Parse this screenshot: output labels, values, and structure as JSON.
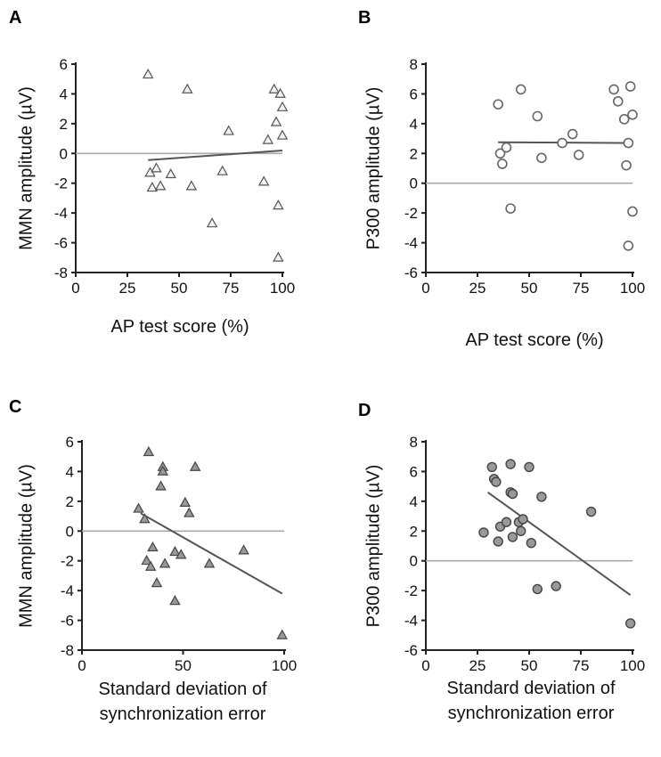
{
  "chart_data": [
    {
      "id": "A",
      "panel_label": "A",
      "type": "scatter",
      "marker": "triangle-open",
      "xlabel": [
        "AP test score (%)"
      ],
      "ylabel": "MMN amplitude (µV)",
      "xlim": [
        0,
        100
      ],
      "ylim": [
        -8,
        6
      ],
      "xticks": [
        0,
        25,
        50,
        75,
        100
      ],
      "yticks": [
        -8,
        -6,
        -4,
        -2,
        0,
        2,
        4,
        6
      ],
      "zero_line": true,
      "fit": {
        "x": [
          35,
          100
        ],
        "y": [
          -0.45,
          0.2
        ]
      },
      "points": [
        {
          "x": 35,
          "y": 5.3
        },
        {
          "x": 36,
          "y": -1.3
        },
        {
          "x": 37,
          "y": -2.3
        },
        {
          "x": 39,
          "y": -1.0
        },
        {
          "x": 41,
          "y": -2.2
        },
        {
          "x": 46,
          "y": -1.4
        },
        {
          "x": 54,
          "y": 4.3
        },
        {
          "x": 56,
          "y": -2.2
        },
        {
          "x": 66,
          "y": -4.7
        },
        {
          "x": 71,
          "y": -1.2
        },
        {
          "x": 74,
          "y": 1.5
        },
        {
          "x": 91,
          "y": -1.9
        },
        {
          "x": 93,
          "y": 0.9
        },
        {
          "x": 96,
          "y": 4.3
        },
        {
          "x": 97,
          "y": 2.1
        },
        {
          "x": 98,
          "y": -3.5
        },
        {
          "x": 98,
          "y": -7.0
        },
        {
          "x": 99,
          "y": 4.0
        },
        {
          "x": 100,
          "y": 3.1
        },
        {
          "x": 100,
          "y": 1.2
        }
      ]
    },
    {
      "id": "B",
      "panel_label": "B",
      "type": "scatter",
      "marker": "circle-open",
      "xlabel": [
        "AP test score (%)"
      ],
      "ylabel": "P300 amplitude (µV)",
      "xlim": [
        0,
        100
      ],
      "ylim": [
        -6,
        8
      ],
      "xticks": [
        0,
        25,
        50,
        75,
        100
      ],
      "yticks": [
        -6,
        -4,
        -2,
        0,
        2,
        4,
        6,
        8
      ],
      "zero_line": true,
      "fit": {
        "x": [
          35,
          100
        ],
        "y": [
          2.75,
          2.7
        ]
      },
      "points": [
        {
          "x": 35,
          "y": 5.3
        },
        {
          "x": 36,
          "y": 2.0
        },
        {
          "x": 37,
          "y": 1.3
        },
        {
          "x": 39,
          "y": 2.4
        },
        {
          "x": 41,
          "y": -1.7
        },
        {
          "x": 46,
          "y": 6.3
        },
        {
          "x": 54,
          "y": 4.5
        },
        {
          "x": 56,
          "y": 1.7
        },
        {
          "x": 66,
          "y": 2.7
        },
        {
          "x": 71,
          "y": 3.3
        },
        {
          "x": 74,
          "y": 1.9
        },
        {
          "x": 91,
          "y": 6.3
        },
        {
          "x": 93,
          "y": 5.5
        },
        {
          "x": 96,
          "y": 4.3
        },
        {
          "x": 97,
          "y": 1.2
        },
        {
          "x": 98,
          "y": 2.7
        },
        {
          "x": 98,
          "y": -4.2
        },
        {
          "x": 99,
          "y": 6.5
        },
        {
          "x": 100,
          "y": 4.6
        },
        {
          "x": 100,
          "y": -1.9
        }
      ]
    },
    {
      "id": "C",
      "panel_label": "C",
      "type": "scatter",
      "marker": "triangle-filled",
      "xlabel": [
        "Standard deviation of",
        "synchronization error"
      ],
      "ylabel": "MMN amplitude (µV)",
      "xlim": [
        0,
        100
      ],
      "ylim": [
        -8,
        6
      ],
      "xticks": [
        0,
        50,
        100
      ],
      "yticks": [
        -8,
        -6,
        -4,
        -2,
        0,
        2,
        4,
        6
      ],
      "zero_line": true,
      "fit": {
        "x": [
          29,
          99
        ],
        "y": [
          1.2,
          -4.2
        ]
      },
      "points": [
        {
          "x": 28,
          "y": 1.5
        },
        {
          "x": 31,
          "y": 0.8
        },
        {
          "x": 32,
          "y": -2.0
        },
        {
          "x": 33,
          "y": 5.3
        },
        {
          "x": 34,
          "y": -2.4
        },
        {
          "x": 35,
          "y": -1.1
        },
        {
          "x": 37,
          "y": -3.5
        },
        {
          "x": 39,
          "y": 3.0
        },
        {
          "x": 40,
          "y": 4.3
        },
        {
          "x": 40,
          "y": 4.0
        },
        {
          "x": 41,
          "y": -2.2
        },
        {
          "x": 46,
          "y": -4.7
        },
        {
          "x": 46,
          "y": -1.4
        },
        {
          "x": 49,
          "y": -1.6
        },
        {
          "x": 51,
          "y": 1.9
        },
        {
          "x": 53,
          "y": 1.2
        },
        {
          "x": 56,
          "y": 4.3
        },
        {
          "x": 63,
          "y": -2.2
        },
        {
          "x": 80,
          "y": -1.3
        },
        {
          "x": 99,
          "y": -7.0
        }
      ]
    },
    {
      "id": "D",
      "panel_label": "D",
      "type": "scatter",
      "marker": "circle-filled",
      "xlabel": [
        "Standard deviation of",
        "synchronization error"
      ],
      "ylabel": "P300 amplitude (µV)",
      "xlim": [
        0,
        100
      ],
      "ylim": [
        -6,
        8
      ],
      "xticks": [
        0,
        25,
        50,
        75,
        100
      ],
      "yticks": [
        -6,
        -4,
        -2,
        0,
        2,
        4,
        6,
        8
      ],
      "zero_line": true,
      "fit": {
        "x": [
          30,
          99
        ],
        "y": [
          4.6,
          -2.3
        ]
      },
      "points": [
        {
          "x": 28,
          "y": 1.9
        },
        {
          "x": 32,
          "y": 6.3
        },
        {
          "x": 33,
          "y": 5.5
        },
        {
          "x": 34,
          "y": 5.3
        },
        {
          "x": 35,
          "y": 1.3
        },
        {
          "x": 36,
          "y": 2.3
        },
        {
          "x": 39,
          "y": 2.6
        },
        {
          "x": 41,
          "y": 4.6
        },
        {
          "x": 41,
          "y": 6.5
        },
        {
          "x": 42,
          "y": 4.5
        },
        {
          "x": 42,
          "y": 1.6
        },
        {
          "x": 45,
          "y": 2.6
        },
        {
          "x": 46,
          "y": 2.0
        },
        {
          "x": 47,
          "y": 2.8
        },
        {
          "x": 50,
          "y": 6.3
        },
        {
          "x": 51,
          "y": 1.2
        },
        {
          "x": 54,
          "y": -1.9
        },
        {
          "x": 56,
          "y": 4.3
        },
        {
          "x": 63,
          "y": -1.7
        },
        {
          "x": 80,
          "y": 3.3
        },
        {
          "x": 99,
          "y": -4.2
        }
      ]
    }
  ]
}
